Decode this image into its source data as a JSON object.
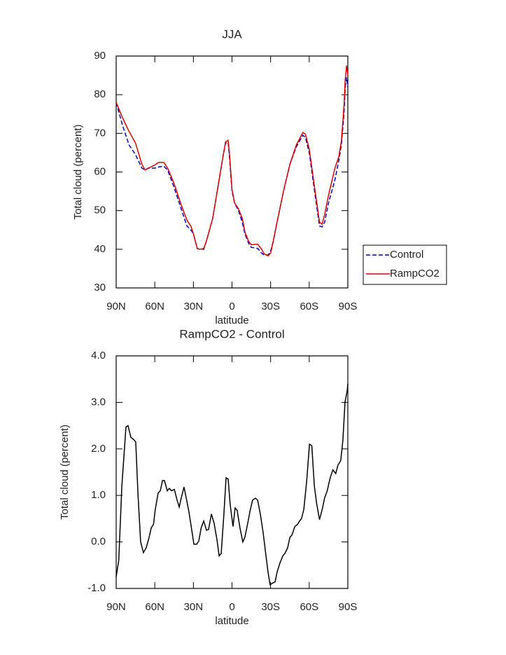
{
  "chart_data": [
    {
      "type": "line",
      "title": "JJA",
      "xlabel": "latitude",
      "ylabel": "Total cloud (percent)",
      "x": [
        90,
        87.5,
        85,
        80,
        75,
        70,
        67.5,
        65,
        60,
        57,
        53,
        50,
        45,
        40,
        35,
        32,
        30,
        27,
        25,
        22,
        20,
        15,
        10,
        7,
        5,
        3,
        2,
        0,
        -2,
        -5,
        -8,
        -10,
        -13,
        -15,
        -20,
        -23,
        -25,
        -28,
        -30,
        -32,
        -35,
        -40,
        -45,
        -50,
        -55,
        -57,
        -60,
        -65,
        -68,
        -70,
        -72,
        -75,
        -80,
        -83,
        -85,
        -87,
        -88,
        -89,
        -90
      ],
      "series": [
        {
          "name": "Control",
          "color": "#0000cc",
          "dash": true,
          "values": [
            78,
            75,
            72,
            67,
            64.5,
            61,
            60.5,
            61,
            61,
            61.3,
            61.5,
            60.5,
            56,
            51,
            46,
            45,
            44,
            40.2,
            40,
            40,
            42,
            48,
            58,
            64,
            67.5,
            67.7,
            64,
            55,
            52,
            50,
            47,
            44,
            41.5,
            40.5,
            40.2,
            39,
            38.5,
            38.5,
            39.5,
            42,
            47,
            55,
            62,
            66.5,
            69.5,
            69,
            65,
            53,
            46,
            45.8,
            47,
            52,
            58,
            63,
            67,
            75,
            82,
            84.5,
            82
          ]
        },
        {
          "name": "RampCO2",
          "color": "#dd0000",
          "dash": false,
          "values": [
            78,
            76,
            74,
            70.5,
            67.5,
            62,
            60.5,
            61,
            61.8,
            62.5,
            62.5,
            61,
            57,
            52,
            47.5,
            46,
            44,
            40.2,
            40,
            40.2,
            42,
            48,
            58,
            64,
            67.8,
            68.2,
            65,
            55.5,
            52,
            50.5,
            48,
            44.5,
            42,
            41.2,
            41.3,
            40,
            38.8,
            38.3,
            39,
            42,
            47,
            55,
            62,
            67,
            70.2,
            69.8,
            66,
            54,
            47,
            46.5,
            49,
            54,
            61,
            64,
            68,
            77,
            84,
            87.5,
            85
          ]
        }
      ],
      "xlim": [
        90,
        -90
      ],
      "ylim": [
        30,
        90
      ],
      "xticks": [
        {
          "value": 90,
          "label": "90N"
        },
        {
          "value": 60,
          "label": "60N"
        },
        {
          "value": 30,
          "label": "30N"
        },
        0,
        {
          "value": -30,
          "label": "30S"
        },
        {
          "value": -60,
          "label": "60S"
        },
        {
          "value": -90,
          "label": "90S"
        }
      ],
      "yticks": [
        30,
        40,
        50,
        60,
        70,
        80,
        90
      ],
      "legend": "right"
    },
    {
      "type": "line",
      "title": "RampCO2 - Control",
      "xlabel": "latitude",
      "ylabel": "Total cloud (percent)",
      "x": [
        90,
        88,
        85.6,
        82.4,
        80.8,
        78.6,
        76.4,
        74.8,
        73,
        71,
        68.8,
        66.6,
        64.4,
        62.8,
        61,
        59.6,
        57.4,
        55.7,
        54,
        52.5,
        50.3,
        48.7,
        47,
        44.8,
        42.7,
        41,
        39.4,
        37.3,
        35.6,
        33.5,
        31.8,
        29.6,
        27.5,
        25.8,
        24,
        22,
        19.8,
        18.2,
        16,
        13.9,
        11.7,
        10,
        8.4,
        6.3,
        4.6,
        3,
        1.4,
        -0.8,
        -2.4,
        -4,
        -6.2,
        -8.4,
        -10,
        -12.2,
        -13.9,
        -16,
        -18.2,
        -19.9,
        -22,
        -24.2,
        -26.4,
        -28,
        -29.6,
        -31.8,
        -33.5,
        -35,
        -37.3,
        -39.5,
        -41,
        -43.2,
        -45,
        -46.6,
        -48.8,
        -51,
        -52.5,
        -54,
        -55.8,
        -58,
        -60.2,
        -62,
        -64,
        -65.8,
        -68,
        -70.1,
        -72,
        -74,
        -76.3,
        -78.4,
        -80.6,
        -82.3,
        -84.5,
        -86.2,
        -87.8,
        -89.5,
        -90
      ],
      "values": [
        -0.75,
        -0.4,
        1.2,
        2.47,
        2.5,
        2.25,
        2.2,
        2.15,
        1.0,
        0,
        -0.23,
        -0.12,
        0.1,
        0.3,
        0.38,
        0.7,
        1.05,
        1.1,
        1.32,
        1.32,
        1.1,
        1.15,
        1.1,
        1.13,
        0.9,
        0.75,
        0.95,
        1.18,
        0.95,
        0.65,
        0.35,
        -0.05,
        -0.05,
        0.02,
        0.3,
        0.45,
        0.25,
        0.27,
        0.6,
        0.4,
        0.05,
        -0.3,
        -0.25,
        0.6,
        1.38,
        1.35,
        0.8,
        0.33,
        0.73,
        0.68,
        0.3,
        0,
        0.1,
        0.4,
        0.65,
        0.9,
        0.94,
        0.9,
        0.6,
        0.2,
        -0.3,
        -0.65,
        -0.92,
        -0.88,
        -0.86,
        -0.65,
        -0.45,
        -0.3,
        -0.25,
        -0.13,
        0.1,
        0.15,
        0.33,
        0.38,
        0.45,
        0.5,
        0.7,
        1.3,
        2.1,
        2.07,
        1.2,
        0.82,
        0.48,
        0.7,
        0.95,
        1.1,
        1.38,
        1.55,
        1.47,
        1.65,
        1.75,
        2.2,
        3.0,
        3.25,
        3.4
      ],
      "color": "#000000",
      "xlim": [
        90,
        -90
      ],
      "ylim": [
        -1,
        4
      ],
      "xticks": [
        {
          "value": 90,
          "label": "90N"
        },
        {
          "value": 60,
          "label": "60N"
        },
        {
          "value": 30,
          "label": "30N"
        },
        0,
        {
          "value": -30,
          "label": "30S"
        },
        {
          "value": -60,
          "label": "60S"
        },
        {
          "value": -90,
          "label": "90S"
        }
      ],
      "yticks": [
        {
          "value": -1,
          "label": "-1.0"
        },
        {
          "value": 0,
          "label": "0.0"
        },
        {
          "value": 1,
          "label": "1.0"
        },
        {
          "value": 2,
          "label": "2.0"
        },
        {
          "value": 3,
          "label": "3.0"
        },
        {
          "value": 4,
          "label": "4.0"
        }
      ]
    }
  ]
}
